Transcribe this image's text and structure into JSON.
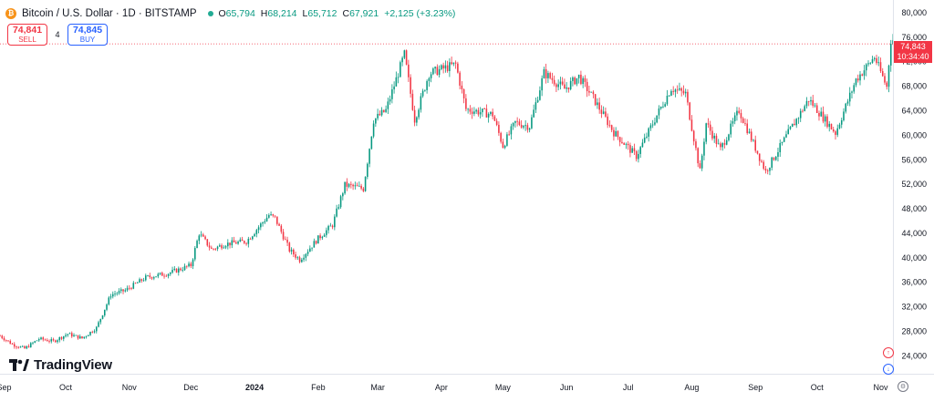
{
  "symbol": {
    "title": "Bitcoin / U.S. Dollar · 1D · BITSTAMP",
    "icon": "bitcoin-icon",
    "icon_glyph": "₿"
  },
  "ohlc": {
    "open_label": "O",
    "open": "65,794",
    "high_label": "H",
    "high": "68,214",
    "low_label": "L",
    "low": "65,712",
    "close_label": "C",
    "close": "67,921",
    "change": "+2,125 (+3.23%)"
  },
  "trade": {
    "sell_price": "74,841",
    "sell_label": "SELL",
    "spread": "4",
    "buy_price": "74,845",
    "buy_label": "BUY"
  },
  "last_price": {
    "price": "74,843",
    "countdown": "10:34:40"
  },
  "branding": {
    "logo_text": "TradingView"
  },
  "colors": {
    "up": "#089981",
    "down": "#f23645",
    "text": "#131722",
    "axis": "#e0e3eb",
    "bitcoin": "#f7931a",
    "buy": "#2962ff"
  },
  "chart_data": {
    "type": "candlestick",
    "title": "Bitcoin / U.S. Dollar · 1D · BITSTAMP",
    "xlabel": "",
    "ylabel": "",
    "ylim": [
      21000,
      82000
    ],
    "grid": false,
    "y_ticks": [
      {
        "value": 24000,
        "label": "24,000"
      },
      {
        "value": 28000,
        "label": "28,000"
      },
      {
        "value": 32000,
        "label": "32,000"
      },
      {
        "value": 36000,
        "label": "36,000"
      },
      {
        "value": 40000,
        "label": "40,000"
      },
      {
        "value": 44000,
        "label": "44,000"
      },
      {
        "value": 48000,
        "label": "48,000"
      },
      {
        "value": 52000,
        "label": "52,000"
      },
      {
        "value": 56000,
        "label": "56,000"
      },
      {
        "value": 60000,
        "label": "60,000"
      },
      {
        "value": 64000,
        "label": "64,000"
      },
      {
        "value": 68000,
        "label": "68,000"
      },
      {
        "value": 72000,
        "label": "72,000"
      },
      {
        "value": 76000,
        "label": "76,000"
      },
      {
        "value": 80000,
        "label": "80,000"
      }
    ],
    "x_ticks": [
      {
        "date": "2023-09-01",
        "label": "Sep",
        "bold": false
      },
      {
        "date": "2023-10-01",
        "label": "Oct",
        "bold": false
      },
      {
        "date": "2023-11-01",
        "label": "Nov",
        "bold": false
      },
      {
        "date": "2023-12-01",
        "label": "Dec",
        "bold": false
      },
      {
        "date": "2024-01-01",
        "label": "2024",
        "bold": true
      },
      {
        "date": "2024-02-01",
        "label": "Feb",
        "bold": false
      },
      {
        "date": "2024-03-01",
        "label": "Mar",
        "bold": false
      },
      {
        "date": "2024-04-01",
        "label": "Apr",
        "bold": false
      },
      {
        "date": "2024-05-01",
        "label": "May",
        "bold": false
      },
      {
        "date": "2024-06-01",
        "label": "Jun",
        "bold": false
      },
      {
        "date": "2024-07-01",
        "label": "Jul",
        "bold": false
      },
      {
        "date": "2024-08-01",
        "label": "Aug",
        "bold": false
      },
      {
        "date": "2024-09-01",
        "label": "Sep",
        "bold": false
      },
      {
        "date": "2024-10-01",
        "label": "Oct",
        "bold": false
      },
      {
        "date": "2024-11-01",
        "label": "Nov",
        "bold": false
      }
    ],
    "x_range": [
      "2023-08-30",
      "2024-11-07"
    ],
    "last_value": 74843,
    "series_close_path": [
      [
        "2023-08-30",
        27200
      ],
      [
        "2023-09-05",
        25800
      ],
      [
        "2023-09-11",
        25100
      ],
      [
        "2023-09-18",
        26700
      ],
      [
        "2023-09-25",
        26300
      ],
      [
        "2023-10-02",
        27500
      ],
      [
        "2023-10-09",
        26800
      ],
      [
        "2023-10-16",
        28500
      ],
      [
        "2023-10-23",
        33900
      ],
      [
        "2023-10-30",
        34600
      ],
      [
        "2023-11-09",
        36700
      ],
      [
        "2023-11-20",
        37400
      ],
      [
        "2023-12-01",
        38700
      ],
      [
        "2023-12-05",
        43900
      ],
      [
        "2023-12-11",
        41300
      ],
      [
        "2023-12-18",
        42200
      ],
      [
        "2023-12-28",
        42600
      ],
      [
        "2024-01-08",
        46900
      ],
      [
        "2024-01-11",
        46400
      ],
      [
        "2024-01-18",
        41200
      ],
      [
        "2024-01-23",
        39600
      ],
      [
        "2024-02-01",
        43100
      ],
      [
        "2024-02-08",
        45300
      ],
      [
        "2024-02-14",
        51800
      ],
      [
        "2024-02-23",
        51200
      ],
      [
        "2024-02-28",
        62400
      ],
      [
        "2024-03-05",
        64000
      ],
      [
        "2024-03-14",
        73100
      ],
      [
        "2024-03-19",
        62500
      ],
      [
        "2024-03-26",
        70000
      ],
      [
        "2024-04-08",
        71500
      ],
      [
        "2024-04-13",
        64200
      ],
      [
        "2024-04-19",
        63800
      ],
      [
        "2024-04-26",
        63300
      ],
      [
        "2024-05-01",
        58200
      ],
      [
        "2024-05-07",
        62000
      ],
      [
        "2024-05-14",
        61400
      ],
      [
        "2024-05-21",
        70100
      ],
      [
        "2024-05-31",
        67500
      ],
      [
        "2024-06-07",
        69500
      ],
      [
        "2024-06-14",
        66000
      ],
      [
        "2024-06-24",
        60400
      ],
      [
        "2024-07-05",
        56500
      ],
      [
        "2024-07-15",
        63200
      ],
      [
        "2024-07-22",
        67600
      ],
      [
        "2024-07-29",
        66700
      ],
      [
        "2024-08-05",
        54000
      ],
      [
        "2024-08-08",
        61900
      ],
      [
        "2024-08-15",
        57600
      ],
      [
        "2024-08-24",
        64000
      ],
      [
        "2024-09-06",
        54000
      ],
      [
        "2024-09-17",
        60300
      ],
      [
        "2024-09-27",
        65800
      ],
      [
        "2024-10-10",
        60300
      ],
      [
        "2024-10-20",
        69000
      ],
      [
        "2024-10-29",
        72700
      ],
      [
        "2024-11-04",
        67800
      ],
      [
        "2024-11-06",
        75500
      ]
    ]
  }
}
